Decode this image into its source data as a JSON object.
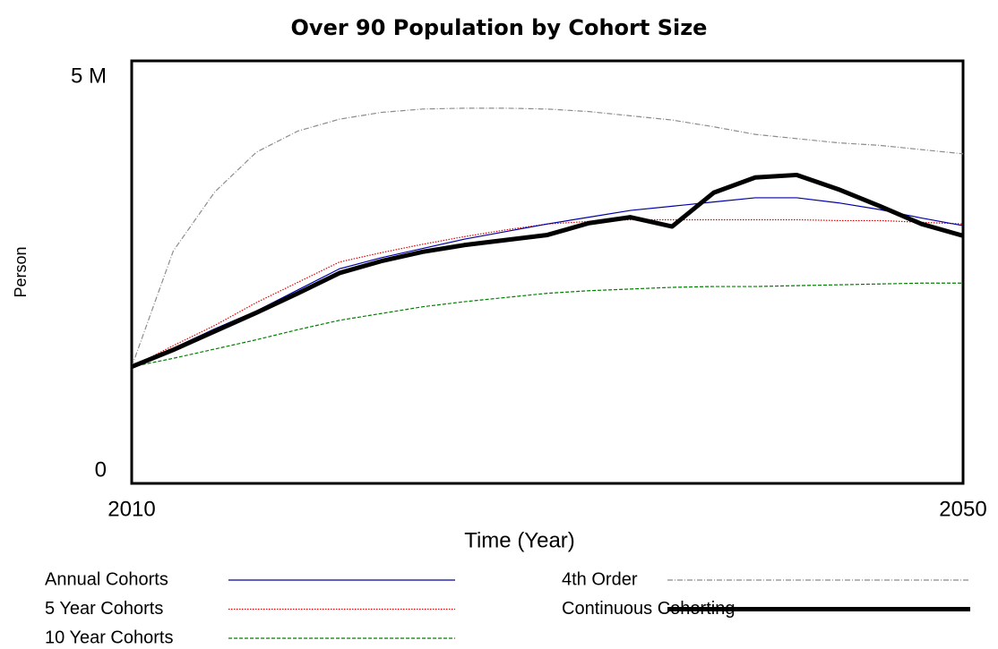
{
  "chart_data": {
    "type": "line",
    "title": "Over 90 Population by Cohort Size",
    "x_label": "Time (Year)",
    "y_label": "Person",
    "x": [
      2010,
      2012,
      2014,
      2016,
      2018,
      2020,
      2022,
      2024,
      2026,
      2028,
      2030,
      2032,
      2034,
      2036,
      2038,
      2040,
      2042,
      2044,
      2046,
      2048,
      2050
    ],
    "xlim": [
      2010,
      2050
    ],
    "xticks": [
      2010,
      2050
    ],
    "ylim": [
      0,
      5000000
    ],
    "yticks": [
      0,
      {
        "value": 5000000,
        "label": "5 M"
      }
    ],
    "series": [
      {
        "name": "Annual Cohorts",
        "color": "#0000a8",
        "width": 1.2,
        "dash": "none",
        "values": [
          1380000,
          1600000,
          1830000,
          2040000,
          2290000,
          2540000,
          2670000,
          2780000,
          2890000,
          2980000,
          3070000,
          3150000,
          3230000,
          3280000,
          3330000,
          3380000,
          3380000,
          3320000,
          3240000,
          3140000,
          3050000
        ]
      },
      {
        "name": "5 Year Cohorts",
        "color": "#e00000",
        "width": 1.2,
        "dash": "1.5,1.5",
        "values": [
          1380000,
          1630000,
          1870000,
          2140000,
          2380000,
          2620000,
          2730000,
          2830000,
          2920000,
          3000000,
          3070000,
          3100000,
          3120000,
          3120000,
          3120000,
          3120000,
          3120000,
          3110000,
          3110000,
          3090000,
          3070000
        ]
      },
      {
        "name": "10 Year Cohorts",
        "color": "#008000",
        "width": 1.2,
        "dash": "4,2",
        "values": [
          1380000,
          1480000,
          1590000,
          1700000,
          1820000,
          1930000,
          2010000,
          2090000,
          2150000,
          2200000,
          2250000,
          2280000,
          2300000,
          2320000,
          2330000,
          2330000,
          2340000,
          2350000,
          2360000,
          2370000,
          2370000
        ]
      },
      {
        "name": "4th Order",
        "color": "#8c8c8c",
        "width": 1.2,
        "dash": "6,2,1,2",
        "values": [
          1380000,
          2750000,
          3450000,
          3920000,
          4170000,
          4310000,
          4390000,
          4430000,
          4440000,
          4440000,
          4430000,
          4400000,
          4350000,
          4300000,
          4220000,
          4130000,
          4080000,
          4030000,
          4000000,
          3950000,
          3900000
        ]
      },
      {
        "name": "Continuous Cohorting",
        "color": "#000000",
        "width": 5,
        "dash": "none",
        "values": [
          1380000,
          1580000,
          1800000,
          2020000,
          2250000,
          2490000,
          2630000,
          2740000,
          2820000,
          2880000,
          2940000,
          3080000,
          3150000,
          3040000,
          3440000,
          3620000,
          3650000,
          3480000,
          3280000,
          3070000,
          2930000
        ]
      }
    ]
  }
}
